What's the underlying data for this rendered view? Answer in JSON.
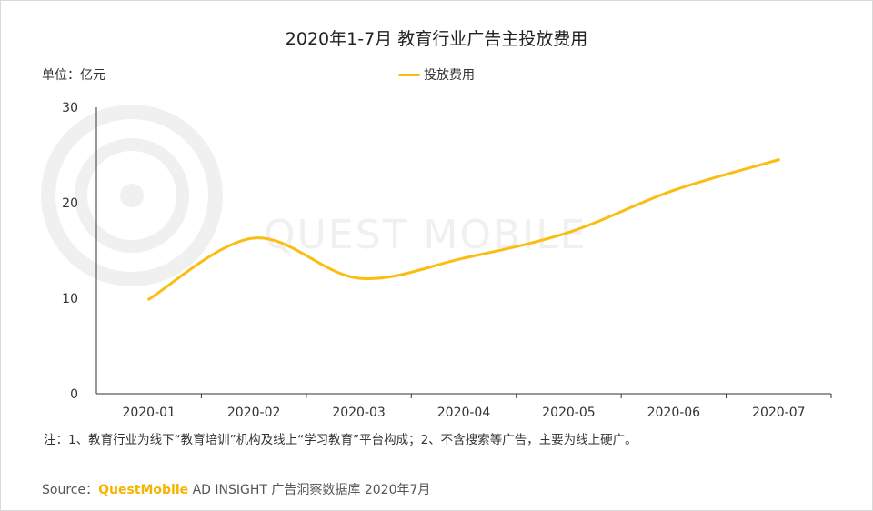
{
  "title": "2020年1-7月 教育行业广告主投放费用",
  "unit_label": "单位：亿元",
  "note": "注：1、教育行业为线下“教育培训”机构及线上“学习教育”平台构成；2、不含搜索等广告，主要为线上硬广。",
  "source": {
    "prefix": "Source：",
    "brand": "QuestMobile",
    "suffix": "AD INSIGHT 广告洞察数据库 2020年7月"
  },
  "watermark": {
    "text": "QUEST MOBILE",
    "icon": "quest-mobile-logo-icon"
  },
  "colors": {
    "line": "#fbbd12",
    "axis": "#333333",
    "watermark": "#f0f0f0",
    "brand": "#f5b400"
  },
  "chart_data": {
    "type": "line",
    "title": "2020年1-7月 教育行业广告主投放费用",
    "xlabel": "",
    "ylabel": "单位：亿元",
    "categories": [
      "2020-01",
      "2020-02",
      "2020-03",
      "2020-04",
      "2020-05",
      "2020-06",
      "2020-07"
    ],
    "series": [
      {
        "name": "投放费用",
        "values": [
          9.9,
          16.3,
          12.1,
          14.2,
          16.9,
          21.3,
          24.5
        ]
      }
    ],
    "ylim": [
      0,
      30
    ],
    "yticks": [
      "0",
      "10",
      "20",
      "30"
    ],
    "grid": false,
    "legend": "top-center",
    "smooth": true
  }
}
